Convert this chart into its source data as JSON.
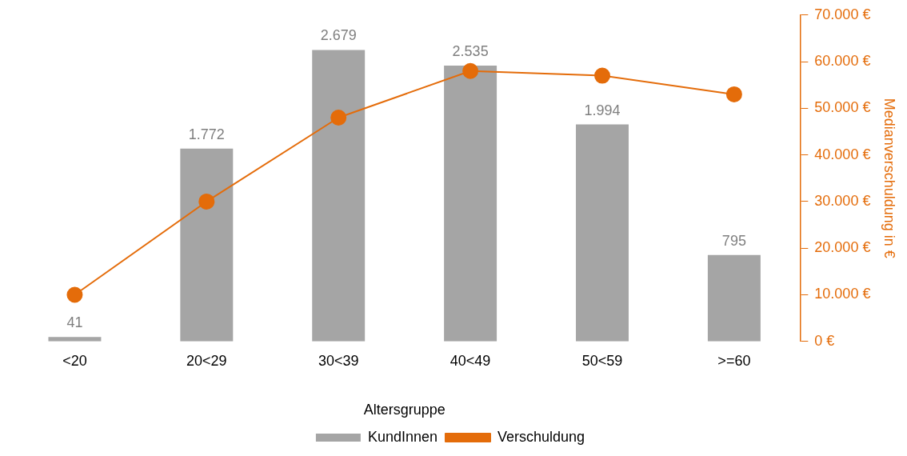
{
  "chart_data": {
    "type": "bar",
    "xlabel": "Altersgruppe",
    "y2label": "Medianverschuldung in €",
    "categories": [
      "<20",
      "20<29",
      "30<39",
      "40<49",
      "50<59",
      ">=60"
    ],
    "series": [
      {
        "name": "KundInnen",
        "color": "#a5a5a5",
        "values": [
          41,
          1772,
          2679,
          2535,
          1994,
          795
        ],
        "value_labels": [
          "41",
          "1.772",
          "2.679",
          "2.535",
          "1.994",
          "795"
        ]
      },
      {
        "name": "Verschuldung",
        "type": "line",
        "axis": "y2",
        "color": "#e46c0a",
        "marker": "circle",
        "values": [
          10000,
          30000,
          48000,
          58000,
          57000,
          53000
        ]
      }
    ],
    "ylim": [
      0,
      3000
    ],
    "y2lim": [
      0,
      70000
    ],
    "y2ticks": [
      {
        "value": 0,
        "label": "0 €"
      },
      {
        "value": 10000,
        "label": "10.000 €"
      },
      {
        "value": 20000,
        "label": "20.000 €"
      },
      {
        "value": 30000,
        "label": "30.000 €"
      },
      {
        "value": 40000,
        "label": "40.000 €"
      },
      {
        "value": 50000,
        "label": "50.000 €"
      },
      {
        "value": 60000,
        "label": "60.000 €"
      },
      {
        "value": 70000,
        "label": "70.000 €"
      }
    ],
    "grid": false,
    "legend": "bottom"
  }
}
